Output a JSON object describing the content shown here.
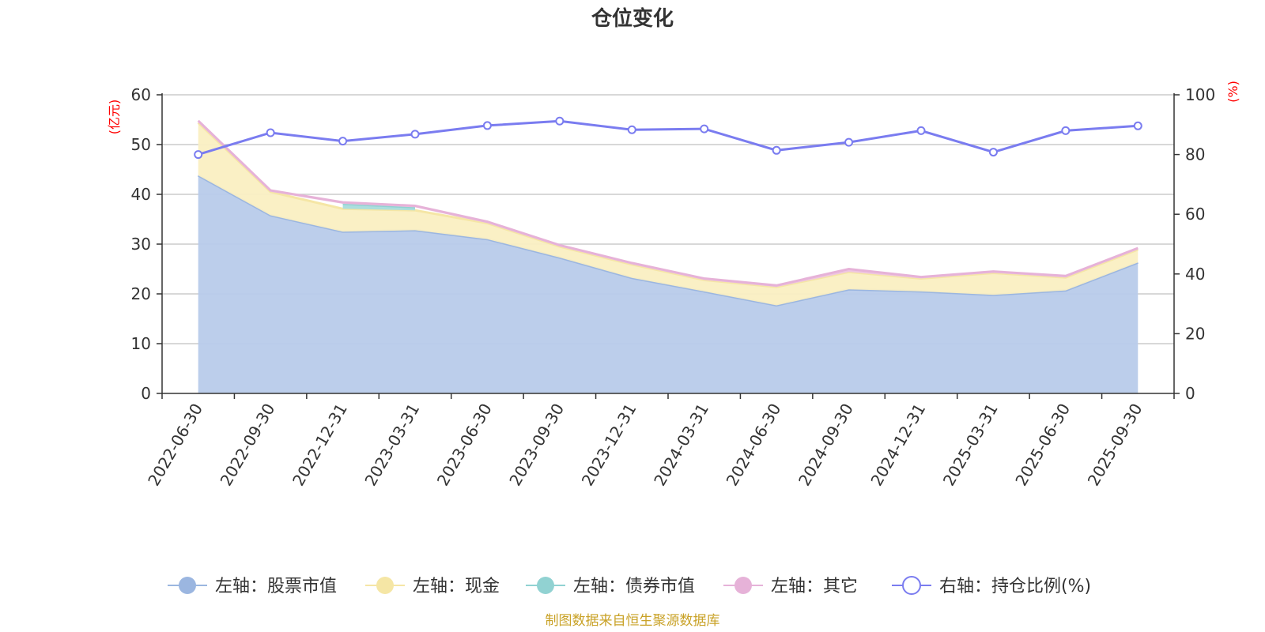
{
  "chart_data": {
    "type": "area",
    "title": "仓位变化",
    "categories": [
      "2022-06-30",
      "2022-09-30",
      "2022-12-31",
      "2023-03-31",
      "2023-06-30",
      "2023-09-30",
      "2023-12-31",
      "2024-03-31",
      "2024-06-30",
      "2024-09-30",
      "2024-12-31",
      "2025-03-31",
      "2025-06-30",
      "2025-09-30"
    ],
    "left_axis": {
      "unit": "(亿元)",
      "ylim": [
        0,
        60
      ],
      "ticks": [
        0,
        10,
        20,
        30,
        40,
        50,
        60
      ]
    },
    "right_axis": {
      "unit": "(%)",
      "ylim": [
        0,
        100
      ],
      "ticks": [
        0,
        20,
        40,
        60,
        80,
        100
      ]
    },
    "series": [
      {
        "name": "左轴：股票市值",
        "axis": "left",
        "stack": true,
        "color": "#9bb6e0",
        "fill": "#b8cbea",
        "values": [
          43.8,
          35.8,
          32.5,
          32.8,
          31.0,
          27.3,
          23.2,
          20.5,
          17.7,
          20.9,
          20.5,
          19.8,
          20.7,
          26.3
        ]
      },
      {
        "name": "左轴：现金",
        "axis": "left",
        "stack": true,
        "color": "#f5e6a5",
        "fill": "#faefc2",
        "values": [
          10.6,
          4.7,
          4.6,
          4.0,
          3.2,
          2.2,
          2.7,
          2.3,
          3.7,
          3.5,
          2.6,
          4.4,
          2.6,
          2.6
        ]
      },
      {
        "name": "左轴：债券市值",
        "axis": "left",
        "stack": true,
        "color": "#91d2d2",
        "fill": "#a8dcdc",
        "values": [
          0,
          0,
          1.0,
          0.6,
          0,
          0,
          0,
          0,
          0,
          0,
          0,
          0,
          0,
          0
        ]
      },
      {
        "name": "左轴：其它",
        "axis": "left",
        "stack": true,
        "color": "#e6b2d8",
        "fill": "#eec4e2",
        "values": [
          0.4,
          0.3,
          0.3,
          0.3,
          0.3,
          0.3,
          0.3,
          0.3,
          0.3,
          0.6,
          0.3,
          0.3,
          0.3,
          0.3
        ]
      },
      {
        "name": "右轴：持仓比例(%)",
        "axis": "right",
        "stack": false,
        "color": "#7a7cf0",
        "values": [
          80.0,
          87.3,
          84.5,
          86.8,
          89.7,
          91.2,
          88.3,
          88.6,
          81.4,
          84.1,
          88.0,
          80.8,
          88.0,
          89.6
        ]
      }
    ]
  },
  "source_note": "制图数据来自恒生聚源数据库"
}
